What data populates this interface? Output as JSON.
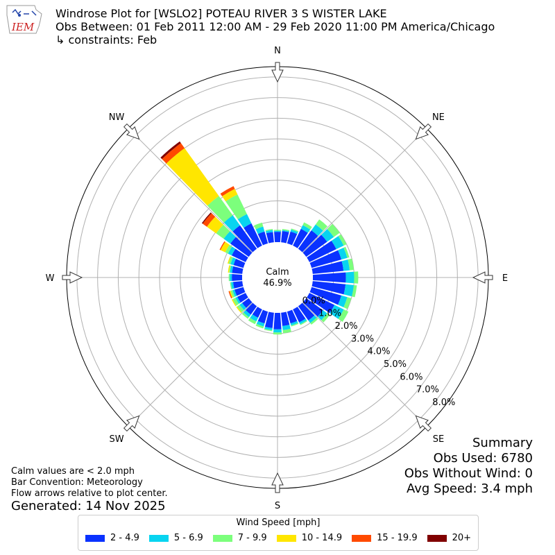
{
  "header": {
    "line1": "Windrose Plot for [WSLO2] POTEAU RIVER 3 S WISTER LAKE",
    "line2": "Obs Between: 01 Feb 2011 12:00 AM - 29 Feb 2020 11:00 PM America/Chicago",
    "line3": "↳ constraints: Feb"
  },
  "logo": {
    "text": "IEM",
    "color": "#cc2222"
  },
  "notes": {
    "calm": "Calm values are < 2.0 mph",
    "convention": "Bar Convention: Meteorology",
    "flow": "Flow arrows relative to plot center.",
    "generated": "Generated: 14 Nov 2025"
  },
  "summary": {
    "title": "Summary",
    "obs_used": "Obs Used: 6780",
    "obs_without_wind": "Obs Without Wind: 0",
    "avg_speed": "Avg Speed: 3.4 mph"
  },
  "legend": {
    "title": "Wind Speed [mph]",
    "items": [
      {
        "label": "2 - 4.9",
        "color": "#0a32ff"
      },
      {
        "label": "5 - 6.9",
        "color": "#08d4f0"
      },
      {
        "label": "7 - 9.9",
        "color": "#7cff7c"
      },
      {
        "label": "10 - 14.9",
        "color": "#ffe600"
      },
      {
        "label": "15 - 19.9",
        "color": "#ff4a00"
      },
      {
        "label": "20+",
        "color": "#800000"
      }
    ]
  },
  "chart_data": {
    "type": "windrose",
    "calm_label": "Calm",
    "calm_value": "46.9%",
    "calm_percent": 46.9,
    "cardinal_labels": [
      "N",
      "NE",
      "E",
      "SE",
      "S",
      "SW",
      "W",
      "NW"
    ],
    "radial_ticks": [
      "0.0%",
      "1.0%",
      "2.0%",
      "3.0%",
      "4.0%",
      "5.0%",
      "6.0%",
      "7.0%",
      "8.0%"
    ],
    "rmax_percent": 8.5,
    "bins": [
      "2 - 4.9",
      "5 - 6.9",
      "7 - 9.9",
      "10 - 14.9",
      "15 - 19.9",
      "20+"
    ],
    "directions_deg": [
      0,
      10,
      20,
      30,
      40,
      50,
      60,
      70,
      80,
      90,
      100,
      110,
      120,
      130,
      140,
      150,
      160,
      170,
      180,
      190,
      200,
      210,
      220,
      230,
      240,
      250,
      260,
      270,
      280,
      290,
      300,
      310,
      320,
      330,
      340,
      350
    ],
    "cumulative_percent": [
      [
        0.5,
        0.55,
        0.6,
        0.6,
        0.6,
        0.6
      ],
      [
        0.55,
        0.6,
        0.65,
        0.65,
        0.65,
        0.65
      ],
      [
        0.6,
        0.7,
        0.75,
        0.75,
        0.75,
        0.75
      ],
      [
        0.9,
        1.1,
        1.25,
        1.25,
        1.25,
        1.25
      ],
      [
        1.1,
        1.45,
        1.75,
        1.75,
        1.75,
        1.75
      ],
      [
        1.25,
        1.65,
        2.0,
        2.0,
        2.0,
        2.0
      ],
      [
        1.45,
        1.85,
        2.0,
        2.0,
        2.0,
        2.0
      ],
      [
        1.5,
        1.8,
        1.9,
        1.9,
        1.9,
        1.9
      ],
      [
        1.5,
        1.8,
        2.0,
        2.0,
        2.0,
        2.0
      ],
      [
        1.6,
        2.0,
        2.2,
        2.2,
        2.2,
        2.2
      ],
      [
        1.6,
        2.0,
        2.15,
        2.15,
        2.15,
        2.15
      ],
      [
        1.5,
        1.8,
        2.0,
        2.0,
        2.0,
        2.0
      ],
      [
        1.35,
        1.85,
        2.1,
        2.1,
        2.1,
        2.1
      ],
      [
        1.0,
        1.25,
        1.4,
        1.4,
        1.4,
        1.4
      ],
      [
        0.85,
        1.0,
        1.1,
        1.1,
        1.1,
        1.1
      ],
      [
        0.7,
        0.8,
        0.85,
        0.85,
        0.85,
        0.85
      ],
      [
        0.6,
        0.7,
        0.75,
        0.75,
        0.75,
        0.75
      ],
      [
        0.65,
        0.85,
        1.0,
        1.0,
        1.0,
        1.0
      ],
      [
        0.8,
        0.95,
        1.05,
        1.05,
        1.05,
        1.05
      ],
      [
        0.75,
        0.85,
        0.9,
        0.9,
        0.9,
        0.9
      ],
      [
        0.6,
        0.75,
        0.85,
        0.85,
        0.85,
        0.85
      ],
      [
        0.45,
        0.65,
        0.8,
        0.8,
        0.8,
        0.8
      ],
      [
        0.5,
        0.65,
        0.75,
        0.75,
        0.75,
        0.75
      ],
      [
        0.4,
        0.55,
        0.7,
        0.75,
        0.75,
        0.75
      ],
      [
        0.45,
        0.55,
        0.7,
        0.75,
        0.75,
        0.75
      ],
      [
        0.45,
        0.55,
        0.65,
        0.7,
        0.75,
        0.75
      ],
      [
        0.45,
        0.55,
        0.6,
        0.6,
        0.6,
        0.6
      ],
      [
        0.5,
        0.6,
        0.65,
        0.65,
        0.65,
        0.65
      ],
      [
        0.5,
        0.6,
        0.65,
        0.7,
        0.7,
        0.7
      ],
      [
        0.5,
        0.65,
        0.75,
        0.8,
        0.8,
        0.8
      ],
      [
        0.75,
        0.95,
        1.1,
        1.35,
        1.4,
        1.4
      ],
      [
        1.1,
        1.5,
        1.95,
        2.5,
        2.75,
        2.8
      ],
      [
        1.4,
        2.0,
        3.15,
        6.0,
        6.3,
        6.4
      ],
      [
        1.2,
        1.7,
        2.75,
        3.05,
        3.2,
        3.2
      ],
      [
        0.6,
        0.85,
        1.05,
        1.05,
        1.05,
        1.05
      ],
      [
        0.5,
        0.6,
        0.65,
        0.65,
        0.65,
        0.65
      ]
    ]
  }
}
